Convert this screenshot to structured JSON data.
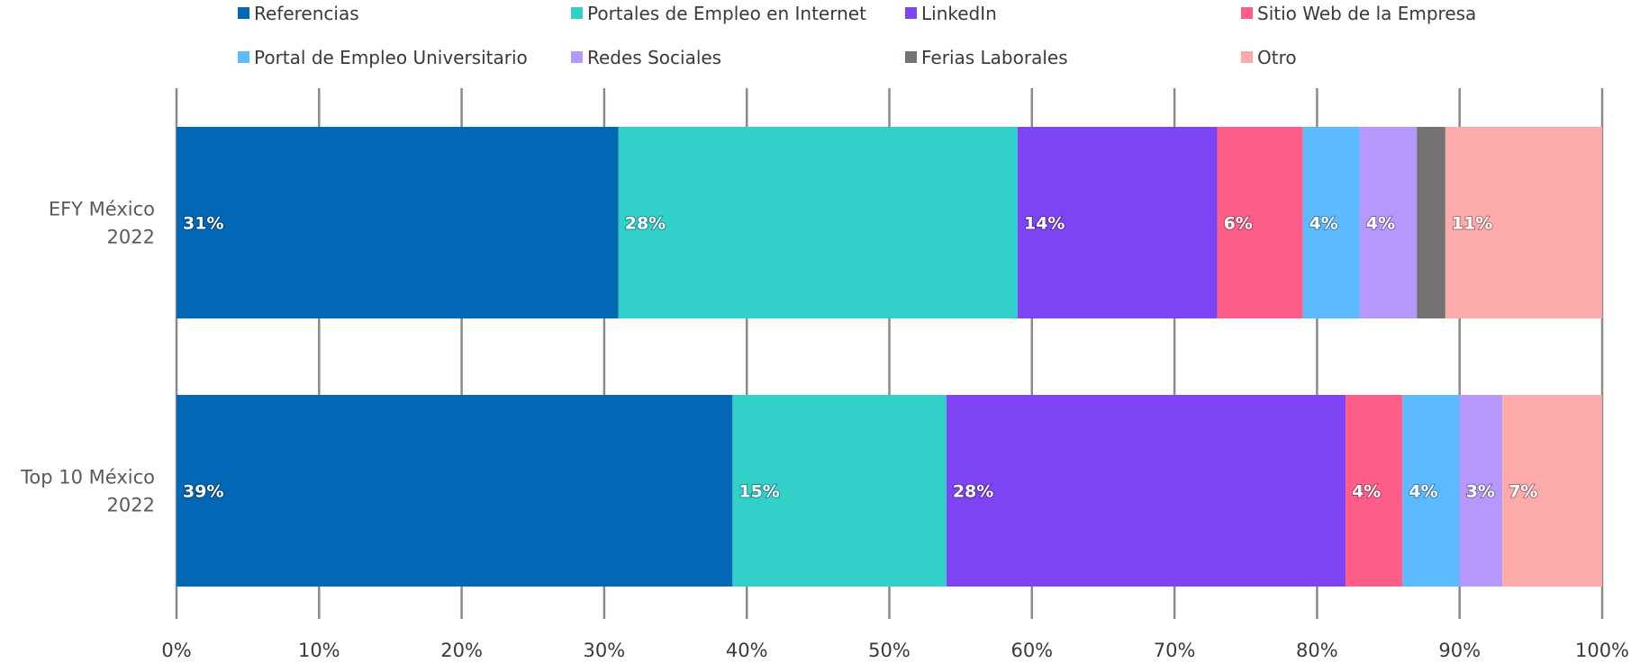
{
  "chart_data": {
    "type": "bar",
    "orientation": "horizontal",
    "stacked": true,
    "categories": [
      [
        "EFY México",
        "2022"
      ],
      [
        "Top 10 México",
        "2022"
      ]
    ],
    "series": [
      {
        "name": "Referencias",
        "color": "#0267b4",
        "values": [
          31,
          39
        ],
        "labels": [
          "31%",
          "39%"
        ]
      },
      {
        "name": "Portales de Empleo en Internet",
        "color": "#31d0c9",
        "values": [
          28,
          15
        ],
        "labels": [
          "28%",
          "15%"
        ]
      },
      {
        "name": "LinkedIn",
        "color": "#7e43f2",
        "values": [
          14,
          28
        ],
        "labels": [
          "14%",
          "28%"
        ]
      },
      {
        "name": "Sitio Web de la Empresa",
        "color": "#ff5d89",
        "values": [
          6,
          4
        ],
        "labels": [
          "6%",
          "4%"
        ]
      },
      {
        "name": "Portal de Empleo Universitario",
        "color": "#5cbbff",
        "values": [
          4,
          4
        ],
        "labels": [
          "4%",
          "4%"
        ]
      },
      {
        "name": "Redes Sociales",
        "color": "#b697fc",
        "values": [
          4,
          3
        ],
        "labels": [
          "4%",
          "3%"
        ]
      },
      {
        "name": "Ferias Laborales",
        "color": "#767272",
        "values": [
          2,
          0
        ],
        "labels": [
          "",
          ""
        ]
      },
      {
        "name": "Otro",
        "color": "#fdaaaa",
        "values": [
          11,
          7
        ],
        "labels": [
          "11%",
          "7%"
        ]
      }
    ],
    "x_ticks": [
      "0%",
      "10%",
      "20%",
      "30%",
      "40%",
      "50%",
      "60%",
      "70%",
      "80%",
      "90%",
      "100%"
    ],
    "xlim": [
      0,
      100
    ],
    "grid": "vertical",
    "legend": "top",
    "title": "",
    "xlabel": "",
    "ylabel": ""
  }
}
